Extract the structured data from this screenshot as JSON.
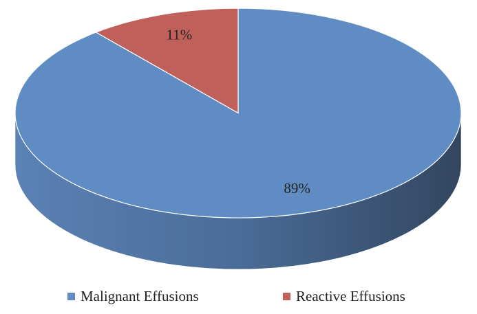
{
  "chart_data": {
    "type": "pie",
    "style": "3d",
    "categories": [
      "Malignant Effusions",
      "Reactive Effusions"
    ],
    "values": [
      89,
      11
    ],
    "value_labels": [
      "89%",
      "11%"
    ],
    "colors": [
      "#5f8dc3",
      "#c0605a"
    ],
    "legend": "bottom"
  }
}
